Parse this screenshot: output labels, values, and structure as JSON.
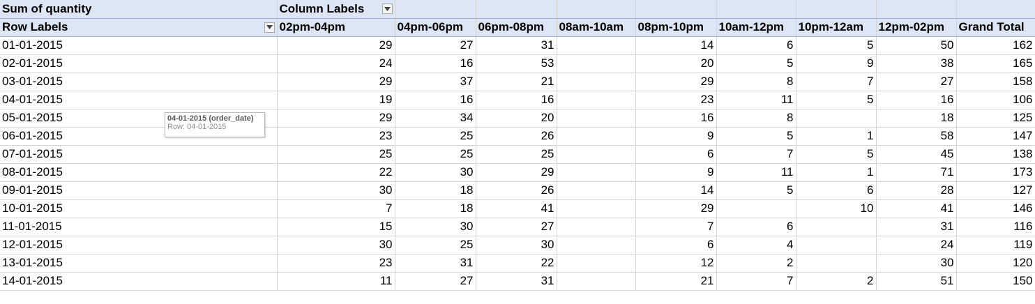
{
  "pivot": {
    "value_field": "Sum of quantity",
    "column_labels": "Column Labels",
    "row_labels": "Row Labels",
    "columns": [
      "02pm-04pm",
      "04pm-06pm",
      "06pm-08pm",
      "08am-10am",
      "08pm-10pm",
      "10am-12pm",
      "10pm-12am",
      "12pm-02pm",
      "Grand Total"
    ],
    "rows": [
      {
        "label": "01-01-2015",
        "values": [
          "29",
          "27",
          "31",
          "",
          "14",
          "6",
          "5",
          "50",
          "162"
        ]
      },
      {
        "label": "02-01-2015",
        "values": [
          "24",
          "16",
          "53",
          "",
          "20",
          "5",
          "9",
          "38",
          "165"
        ]
      },
      {
        "label": "03-01-2015",
        "values": [
          "29",
          "37",
          "21",
          "",
          "29",
          "8",
          "7",
          "27",
          "158"
        ]
      },
      {
        "label": "04-01-2015",
        "values": [
          "19",
          "16",
          "16",
          "",
          "23",
          "11",
          "5",
          "16",
          "106"
        ]
      },
      {
        "label": "05-01-2015",
        "values": [
          "29",
          "34",
          "20",
          "",
          "16",
          "8",
          "",
          "18",
          "125"
        ]
      },
      {
        "label": "06-01-2015",
        "values": [
          "23",
          "25",
          "26",
          "",
          "9",
          "5",
          "1",
          "58",
          "147"
        ]
      },
      {
        "label": "07-01-2015",
        "values": [
          "25",
          "25",
          "25",
          "",
          "6",
          "7",
          "5",
          "45",
          "138"
        ]
      },
      {
        "label": "08-01-2015",
        "values": [
          "22",
          "30",
          "29",
          "",
          "9",
          "11",
          "1",
          "71",
          "173"
        ]
      },
      {
        "label": "09-01-2015",
        "values": [
          "30",
          "18",
          "26",
          "",
          "14",
          "5",
          "6",
          "28",
          "127"
        ]
      },
      {
        "label": "10-01-2015",
        "values": [
          "7",
          "18",
          "41",
          "",
          "29",
          "",
          "10",
          "41",
          "146"
        ]
      },
      {
        "label": "11-01-2015",
        "values": [
          "15",
          "30",
          "27",
          "",
          "7",
          "6",
          "",
          "31",
          "116"
        ]
      },
      {
        "label": "12-01-2015",
        "values": [
          "30",
          "25",
          "30",
          "",
          "6",
          "4",
          "",
          "24",
          "119"
        ]
      },
      {
        "label": "13-01-2015",
        "values": [
          "23",
          "31",
          "22",
          "",
          "12",
          "2",
          "",
          "30",
          "120"
        ]
      },
      {
        "label": "14-01-2015",
        "values": [
          "11",
          "27",
          "31",
          "",
          "21",
          "7",
          "2",
          "51",
          "150"
        ]
      }
    ]
  },
  "tooltip": {
    "title": "04-01-2015 (order_date)",
    "detail": "Row: 04-01-2015"
  },
  "colors": {
    "header_fill": "#dce6f4",
    "gridline": "#d4d4d4"
  }
}
